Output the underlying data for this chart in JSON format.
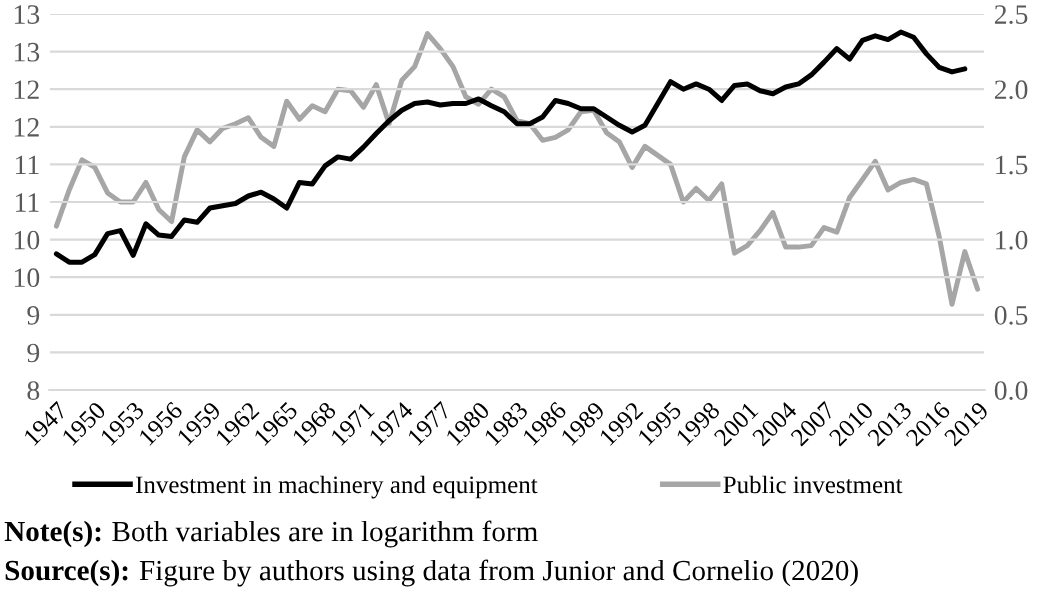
{
  "chart_data": {
    "type": "line",
    "categories": [
      "1947",
      null,
      null,
      "1950",
      null,
      null,
      "1953",
      null,
      null,
      "1956",
      null,
      null,
      "1959",
      null,
      null,
      "1962",
      null,
      null,
      "1965",
      null,
      null,
      "1968",
      null,
      null,
      "1971",
      null,
      null,
      "1974",
      null,
      null,
      "1977",
      null,
      null,
      "1980",
      null,
      null,
      "1983",
      null,
      null,
      "1986",
      null,
      null,
      "1989",
      null,
      null,
      "1992",
      null,
      null,
      "1995",
      null,
      null,
      "1998",
      null,
      null,
      "2001",
      null,
      null,
      "2004",
      null,
      null,
      "2007",
      null,
      null,
      "2010",
      null,
      null,
      "2013",
      null,
      null,
      "2016",
      null,
      null,
      "2019"
    ],
    "series": [
      {
        "name": "Investment in machinery and equipment",
        "color": "#000000",
        "values": [
          9.81,
          9.7,
          9.7,
          9.8,
          10.08,
          10.12,
          9.79,
          10.21,
          10.06,
          10.04,
          10.26,
          10.23,
          10.42,
          10.45,
          10.48,
          10.58,
          10.63,
          10.54,
          10.42,
          10.76,
          10.74,
          10.98,
          11.1,
          11.07,
          11.23,
          11.41,
          11.58,
          11.72,
          11.81,
          11.83,
          11.79,
          11.81,
          11.81,
          11.87,
          11.78,
          11.7,
          11.54,
          11.54,
          11.63,
          11.85,
          11.81,
          11.74,
          11.74,
          11.63,
          11.52,
          11.43,
          11.52,
          11.81,
          12.1,
          12.0,
          12.07,
          12.0,
          11.85,
          12.05,
          12.07,
          11.98,
          11.94,
          12.03,
          12.07,
          12.19,
          12.36,
          12.54,
          12.4,
          12.65,
          12.71,
          12.66,
          12.76,
          12.69,
          12.47,
          12.29,
          12.23,
          12.27,
          null
        ]
      },
      {
        "name": "Public investment",
        "color": "#a6a6a6",
        "axis": "y2",
        "values": [
          1.09,
          1.33,
          1.53,
          1.48,
          1.31,
          1.25,
          1.25,
          1.38,
          1.2,
          1.12,
          1.55,
          1.73,
          1.65,
          1.74,
          1.77,
          1.81,
          1.68,
          1.62,
          1.92,
          1.8,
          1.89,
          1.85,
          2.0,
          1.99,
          1.88,
          2.03,
          1.77,
          2.06,
          2.15,
          2.37,
          2.27,
          2.15,
          1.95,
          1.9,
          2.0,
          1.95,
          1.79,
          1.77,
          1.66,
          1.68,
          1.73,
          1.85,
          1.86,
          1.71,
          1.65,
          1.48,
          1.62,
          1.56,
          1.5,
          1.25,
          1.34,
          1.26,
          1.37,
          0.91,
          0.96,
          1.06,
          1.18,
          0.95,
          0.95,
          0.96,
          1.08,
          1.05,
          1.28,
          1.4,
          1.52,
          1.33,
          1.38,
          1.4,
          1.37,
          1.02,
          0.57,
          0.92,
          0.67
        ]
      }
    ],
    "ylim": [
      8,
      13
    ],
    "yticks": [
      8,
      {
        "value": 8.5,
        "label": "9"
      },
      9,
      {
        "value": 9.5,
        "label": "10"
      },
      10,
      {
        "value": 10.5,
        "label": "11"
      },
      11,
      {
        "value": 11.5,
        "label": "12"
      },
      12,
      {
        "value": 12.5,
        "label": "13"
      },
      13
    ],
    "y2lim": [
      0,
      2.5
    ],
    "y2ticks": [
      {
        "value": 0,
        "label": "0.0"
      },
      {
        "value": 0.5,
        "label": "0.5"
      },
      {
        "value": 1,
        "label": "1.0"
      },
      {
        "value": 1.5,
        "label": "1.5"
      },
      {
        "value": 2,
        "label": "2.0"
      },
      {
        "value": 2.5,
        "label": "2.5"
      }
    ],
    "grid": "y",
    "legend": "bottom",
    "line_style": "solid",
    "annotations": [
      "Note(s): Both variables are in logarithm form",
      "Source(s): Figure by authors using data from Junior and Cornelio (2020)"
    ]
  }
}
